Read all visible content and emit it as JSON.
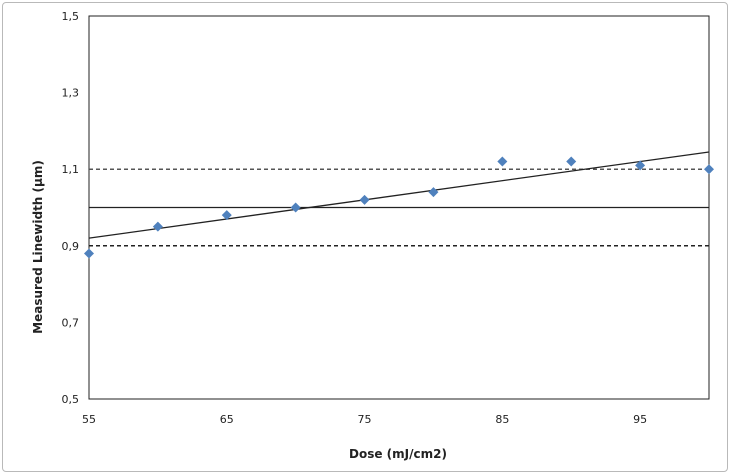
{
  "chart_data": {
    "type": "scatter",
    "title": "",
    "xlabel": "Dose (mJ/cm2)",
    "ylabel": "Measured Linewidth (μm)",
    "xlim": [
      55,
      100
    ],
    "ylim": [
      0.5,
      1.5
    ],
    "x_ticks": [
      55,
      65,
      75,
      85,
      95
    ],
    "x_tick_labels": [
      "55",
      "65",
      "75",
      "85",
      "95"
    ],
    "y_ticks": [
      0.5,
      0.7,
      0.9,
      1.1,
      1.3,
      1.5
    ],
    "y_tick_labels": [
      "0,5",
      "0,7",
      "0,9",
      "1,1",
      "1,3",
      "1,5"
    ],
    "grid": false,
    "legend": "none",
    "series": [
      {
        "x": [
          55,
          60,
          65,
          70,
          75,
          80,
          85,
          90,
          95,
          100
        ],
        "y": [
          0.88,
          0.95,
          0.98,
          1.0,
          1.02,
          1.04,
          1.12,
          1.12,
          1.11,
          1.1
        ],
        "marker": "diamond",
        "color": "#4f81bd"
      }
    ],
    "reference_lines": [
      {
        "y": 1.0,
        "style": "solid",
        "color": "#222222"
      },
      {
        "y": 0.9,
        "style": "dashed",
        "color": "#222222"
      },
      {
        "y": 1.1,
        "style": "dashed",
        "color": "#555555"
      }
    ],
    "trendline": {
      "x": [
        55,
        100
      ],
      "y": [
        0.92,
        1.145
      ],
      "style": "solid",
      "color": "#222222"
    }
  }
}
